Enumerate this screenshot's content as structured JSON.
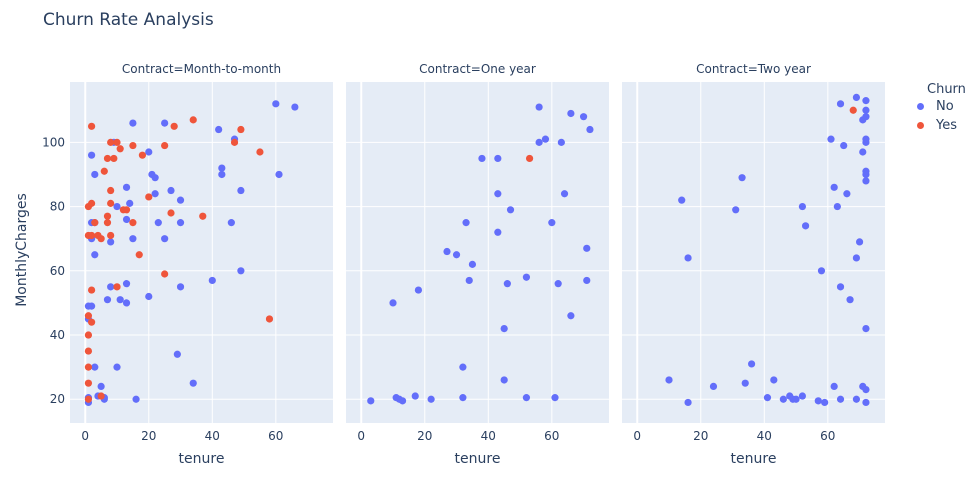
{
  "chart_data": {
    "type": "scatter",
    "title": "Churn Rate Analysis",
    "xlabel": "tenure",
    "ylabel": "MonthlyCharges",
    "xlim": [
      -4.8,
      78
    ],
    "ylim": [
      12.6,
      118.8
    ],
    "xticks": [
      0,
      20,
      40,
      60
    ],
    "yticks": [
      20,
      40,
      60,
      80,
      100
    ],
    "grid": true,
    "legend": {
      "title": "Churn",
      "placement": "right",
      "entries": [
        {
          "name": "No",
          "color": "#636efa"
        },
        {
          "name": "Yes",
          "color": "#EF553B"
        }
      ]
    },
    "facets": [
      {
        "label": "Contract=Month-to-month",
        "series": [
          {
            "name": "No",
            "points": [
              [
                15,
                106
              ],
              [
                25,
                106
              ],
              [
                9,
                100
              ],
              [
                20,
                97
              ],
              [
                2,
                96
              ],
              [
                3,
                90
              ],
              [
                21,
                90
              ],
              [
                22,
                89
              ],
              [
                13,
                86
              ],
              [
                22,
                84
              ],
              [
                27,
                85
              ],
              [
                30,
                82
              ],
              [
                10,
                80
              ],
              [
                14,
                81
              ],
              [
                2,
                75
              ],
              [
                3,
                75
              ],
              [
                13,
                76
              ],
              [
                23,
                75
              ],
              [
                30,
                75
              ],
              [
                2,
                70
              ],
              [
                8,
                69
              ],
              [
                15,
                70
              ],
              [
                25,
                70
              ],
              [
                3,
                65
              ],
              [
                30,
                55
              ],
              [
                8,
                55
              ],
              [
                13,
                56
              ],
              [
                20,
                52
              ],
              [
                7,
                51
              ],
              [
                11,
                51
              ],
              [
                13,
                50
              ],
              [
                1,
                49
              ],
              [
                2,
                49
              ],
              [
                1,
                45
              ],
              [
                29,
                34
              ],
              [
                3,
                30
              ],
              [
                10,
                30
              ],
              [
                5,
                24
              ],
              [
                34,
                25
              ],
              [
                1,
                20.5
              ],
              [
                1,
                19
              ],
              [
                4,
                21
              ],
              [
                6,
                20.5
              ],
              [
                6,
                20
              ],
              [
                16,
                20
              ],
              [
                60,
                112
              ],
              [
                66,
                111
              ],
              [
                42,
                104
              ],
              [
                47,
                101
              ],
              [
                43,
                92
              ],
              [
                43,
                90
              ],
              [
                61,
                90
              ],
              [
                49,
                85
              ],
              [
                46,
                75
              ],
              [
                49,
                60
              ],
              [
                40,
                57
              ]
            ]
          },
          {
            "name": "Yes",
            "points": [
              [
                2,
                105
              ],
              [
                28,
                105
              ],
              [
                34,
                107
              ],
              [
                8,
                100
              ],
              [
                10,
                100
              ],
              [
                11,
                98
              ],
              [
                15,
                99
              ],
              [
                25,
                99
              ],
              [
                7,
                95
              ],
              [
                9,
                95
              ],
              [
                18,
                96
              ],
              [
                6,
                91
              ],
              [
                8,
                85
              ],
              [
                20,
                83
              ],
              [
                1,
                80
              ],
              [
                2,
                81
              ],
              [
                8,
                81
              ],
              [
                12,
                79
              ],
              [
                13,
                79
              ],
              [
                27,
                78
              ],
              [
                37,
                77
              ],
              [
                3,
                75
              ],
              [
                7,
                77
              ],
              [
                7,
                75
              ],
              [
                15,
                75
              ],
              [
                1,
                71
              ],
              [
                2,
                71
              ],
              [
                4,
                71
              ],
              [
                5,
                70
              ],
              [
                8,
                71
              ],
              [
                17,
                65
              ],
              [
                25,
                59
              ],
              [
                10,
                55
              ],
              [
                2,
                54
              ],
              [
                1,
                46
              ],
              [
                2,
                44
              ],
              [
                1,
                40
              ],
              [
                1,
                35
              ],
              [
                1,
                30
              ],
              [
                1,
                25
              ],
              [
                1,
                20
              ],
              [
                5,
                21
              ],
              [
                49,
                104
              ],
              [
                47,
                100
              ],
              [
                55,
                97
              ],
              [
                58,
                45
              ]
            ]
          }
        ]
      },
      {
        "label": "Contract=One year",
        "series": [
          {
            "name": "No",
            "points": [
              [
                38,
                95
              ],
              [
                33,
                75
              ],
              [
                27,
                66
              ],
              [
                30,
                65
              ],
              [
                35,
                62
              ],
              [
                34,
                57
              ],
              [
                18,
                54
              ],
              [
                10,
                50
              ],
              [
                32,
                30
              ],
              [
                3,
                19.5
              ],
              [
                11,
                20.5
              ],
              [
                12,
                20
              ],
              [
                13,
                19.5
              ],
              [
                17,
                21
              ],
              [
                22,
                20
              ],
              [
                32,
                20.5
              ],
              [
                56,
                111
              ],
              [
                66,
                109
              ],
              [
                70,
                108
              ],
              [
                72,
                104
              ],
              [
                56,
                100
              ],
              [
                58,
                101
              ],
              [
                63,
                100
              ],
              [
                43,
                95
              ],
              [
                43,
                84
              ],
              [
                64,
                84
              ],
              [
                47,
                79
              ],
              [
                60,
                75
              ],
              [
                43,
                72
              ],
              [
                71,
                67
              ],
              [
                52,
                58
              ],
              [
                46,
                56
              ],
              [
                62,
                56
              ],
              [
                71,
                57
              ],
              [
                66,
                46
              ],
              [
                45,
                42
              ],
              [
                45,
                26
              ],
              [
                52,
                20.5
              ],
              [
                61,
                20.5
              ]
            ]
          },
          {
            "name": "Yes",
            "points": [
              [
                53,
                95
              ]
            ]
          }
        ]
      },
      {
        "label": "Contract=Two year",
        "series": [
          {
            "name": "No",
            "points": [
              [
                33,
                89
              ],
              [
                14,
                82
              ],
              [
                31,
                79
              ],
              [
                16,
                64
              ],
              [
                36,
                31
              ],
              [
                10,
                26
              ],
              [
                24,
                24
              ],
              [
                34,
                25
              ],
              [
                16,
                19
              ],
              [
                69,
                114
              ],
              [
                64,
                112
              ],
              [
                72,
                113
              ],
              [
                72,
                110
              ],
              [
                71,
                107
              ],
              [
                72,
                108
              ],
              [
                61,
                101
              ],
              [
                72,
                101
              ],
              [
                72,
                100
              ],
              [
                65,
                99
              ],
              [
                71,
                97
              ],
              [
                72,
                91
              ],
              [
                72,
                90
              ],
              [
                72,
                88
              ],
              [
                62,
                86
              ],
              [
                66,
                84
              ],
              [
                52,
                80
              ],
              [
                63,
                80
              ],
              [
                53,
                74
              ],
              [
                70,
                69
              ],
              [
                69,
                64
              ],
              [
                58,
                60
              ],
              [
                64,
                55
              ],
              [
                67,
                51
              ],
              [
                72,
                42
              ],
              [
                43,
                26
              ],
              [
                62,
                24
              ],
              [
                71,
                24
              ],
              [
                72,
                23
              ],
              [
                41,
                20.5
              ],
              [
                46,
                20
              ],
              [
                48,
                21
              ],
              [
                49,
                20
              ],
              [
                50,
                20
              ],
              [
                52,
                21
              ],
              [
                57,
                19.5
              ],
              [
                59,
                19
              ],
              [
                64,
                20
              ],
              [
                69,
                20
              ],
              [
                72,
                19
              ]
            ]
          },
          {
            "name": "Yes",
            "points": [
              [
                68,
                110
              ]
            ]
          }
        ]
      }
    ]
  }
}
